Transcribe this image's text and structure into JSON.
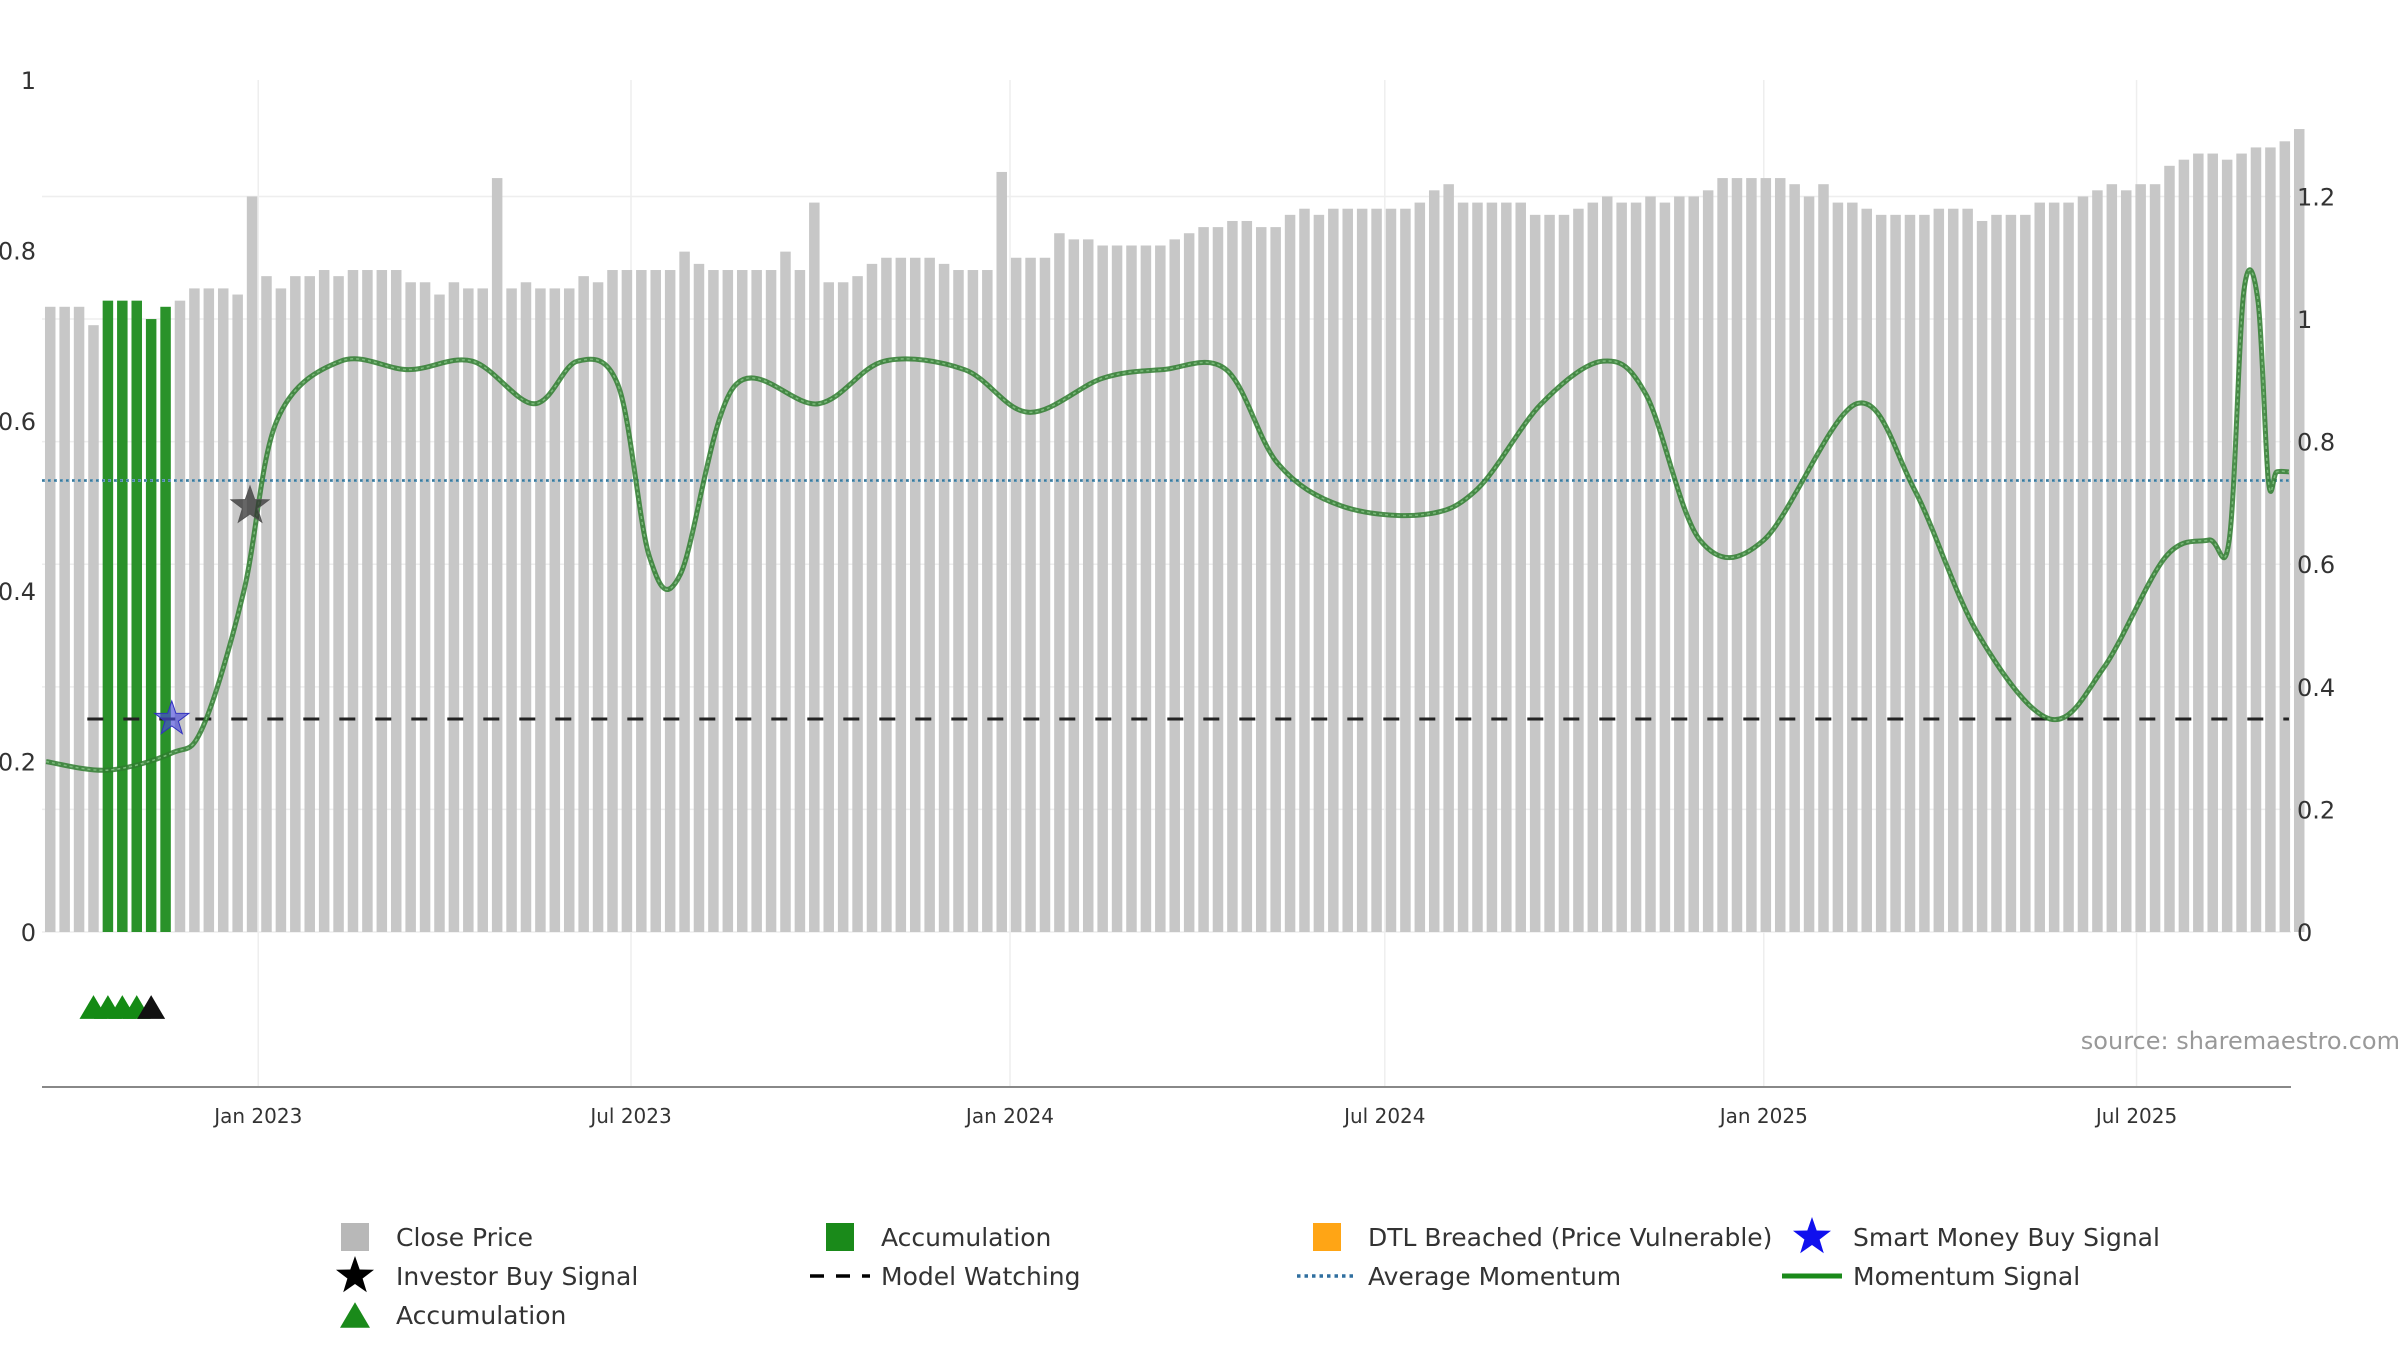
{
  "chart_data": {
    "type": "bar+line",
    "source_note": "source: sharemaestro.com",
    "y_left": {
      "range": [
        0,
        1
      ],
      "ticks": [
        0,
        0.2,
        0.4,
        0.6,
        0.8,
        1
      ],
      "tick_labels": [
        "0",
        "0.2",
        "0.4",
        "0.6",
        "0.8",
        "1"
      ]
    },
    "y_right": {
      "range": [
        0,
        1.39
      ],
      "ticks": [
        0,
        0.2,
        0.4,
        0.6,
        0.8,
        1,
        1.2
      ],
      "tick_labels": [
        "0",
        "0.2",
        "0.4",
        "0.6",
        "0.8",
        "1",
        "1.2"
      ]
    },
    "x_axis": {
      "range": [
        "2022-09-18",
        "2025-09-14"
      ],
      "ticks": [
        "2023-01-01",
        "2023-07-01",
        "2024-01-01",
        "2024-07-01",
        "2025-01-01",
        "2025-07-01"
      ],
      "tick_labels": [
        "Jan 2023",
        "Jul 2023",
        "Jan 2024",
        "Jul 2024",
        "Jan 2025",
        "Jul 2025"
      ]
    },
    "bars": {
      "name": "Close Price",
      "axis": "right",
      "start_date": "2022-09-22",
      "step_days": 7,
      "accumulation_indices": [
        4,
        5,
        6,
        7,
        8
      ],
      "values": [
        1.02,
        1.02,
        1.02,
        0.99,
        1.03,
        1.03,
        1.03,
        1.0,
        1.02,
        1.03,
        1.05,
        1.05,
        1.05,
        1.04,
        1.2,
        1.07,
        1.05,
        1.07,
        1.07,
        1.08,
        1.07,
        1.08,
        1.08,
        1.08,
        1.08,
        1.06,
        1.06,
        1.04,
        1.06,
        1.05,
        1.05,
        1.23,
        1.05,
        1.06,
        1.05,
        1.05,
        1.05,
        1.07,
        1.06,
        1.08,
        1.08,
        1.08,
        1.08,
        1.08,
        1.11,
        1.09,
        1.08,
        1.08,
        1.08,
        1.08,
        1.08,
        1.11,
        1.08,
        1.19,
        1.06,
        1.06,
        1.07,
        1.09,
        1.1,
        1.1,
        1.1,
        1.1,
        1.09,
        1.08,
        1.08,
        1.08,
        1.24,
        1.1,
        1.1,
        1.1,
        1.14,
        1.13,
        1.13,
        1.12,
        1.12,
        1.12,
        1.12,
        1.12,
        1.13,
        1.14,
        1.15,
        1.15,
        1.16,
        1.16,
        1.15,
        1.15,
        1.17,
        1.18,
        1.17,
        1.18,
        1.18,
        1.18,
        1.18,
        1.18,
        1.18,
        1.19,
        1.21,
        1.22,
        1.19,
        1.19,
        1.19,
        1.19,
        1.19,
        1.17,
        1.17,
        1.17,
        1.18,
        1.19,
        1.2,
        1.19,
        1.19,
        1.2,
        1.19,
        1.2,
        1.2,
        1.21,
        1.23,
        1.23,
        1.23,
        1.23,
        1.23,
        1.22,
        1.2,
        1.22,
        1.19,
        1.19,
        1.18,
        1.17,
        1.17,
        1.17,
        1.17,
        1.18,
        1.18,
        1.18,
        1.16,
        1.17,
        1.17,
        1.17,
        1.19,
        1.19,
        1.19,
        1.2,
        1.21,
        1.22,
        1.21,
        1.22,
        1.22,
        1.25,
        1.26,
        1.27,
        1.27,
        1.26,
        1.27,
        1.28,
        1.28,
        1.29,
        1.31
      ]
    },
    "momentum_signal": {
      "name": "Momentum Signal",
      "axis": "left",
      "points": [
        [
          "2022-09-20",
          0.2
        ],
        [
          "2022-10-20",
          0.19
        ],
        [
          "2022-11-20",
          0.21
        ],
        [
          "2022-12-05",
          0.24
        ],
        [
          "2022-12-25",
          0.4
        ],
        [
          "2023-01-10",
          0.6
        ],
        [
          "2023-02-10",
          0.67
        ],
        [
          "2023-03-15",
          0.66
        ],
        [
          "2023-04-15",
          0.67
        ],
        [
          "2023-05-15",
          0.62
        ],
        [
          "2023-06-05",
          0.67
        ],
        [
          "2023-06-25",
          0.64
        ],
        [
          "2023-07-10",
          0.44
        ],
        [
          "2023-07-25",
          0.42
        ],
        [
          "2023-08-20",
          0.64
        ],
        [
          "2023-09-30",
          0.62
        ],
        [
          "2023-11-01",
          0.67
        ],
        [
          "2023-12-10",
          0.66
        ],
        [
          "2024-01-10",
          0.61
        ],
        [
          "2024-02-15",
          0.65
        ],
        [
          "2024-03-15",
          0.66
        ],
        [
          "2024-04-15",
          0.66
        ],
        [
          "2024-05-10",
          0.55
        ],
        [
          "2024-06-10",
          0.5
        ],
        [
          "2024-07-20",
          0.49
        ],
        [
          "2024-08-15",
          0.52
        ],
        [
          "2024-09-15",
          0.62
        ],
        [
          "2024-10-15",
          0.67
        ],
        [
          "2024-11-05",
          0.63
        ],
        [
          "2024-12-01",
          0.46
        ],
        [
          "2025-01-01",
          0.46
        ],
        [
          "2025-02-15",
          0.62
        ],
        [
          "2025-03-15",
          0.52
        ],
        [
          "2025-04-15",
          0.35
        ],
        [
          "2025-05-20",
          0.25
        ],
        [
          "2025-06-15",
          0.31
        ],
        [
          "2025-07-15",
          0.44
        ],
        [
          "2025-08-05",
          0.46
        ],
        [
          "2025-08-15",
          0.46
        ],
        [
          "2025-08-22",
          0.75
        ],
        [
          "2025-08-29",
          0.74
        ],
        [
          "2025-09-03",
          0.53
        ],
        [
          "2025-09-07",
          0.54
        ],
        [
          "2025-09-13",
          0.54
        ]
      ]
    },
    "average_momentum": {
      "name": "Average Momentum",
      "axis": "left",
      "value": 0.53
    },
    "model_watching": {
      "name": "Model Watching",
      "axis": "left",
      "value": 0.25,
      "start": "2022-10-10",
      "end": "2025-09-13"
    },
    "investor_buy_signal": {
      "name": "Investor Buy Signal",
      "date": "2022-12-28",
      "value": 0.5
    },
    "smart_money_buy_signal": {
      "name": "Smart Money Buy Signal",
      "date": "2022-11-20",
      "value": 0.25
    },
    "accumulation_markers": {
      "name": "Accumulation",
      "green_dates": [
        "2022-10-13",
        "2022-10-20",
        "2022-10-27",
        "2022-11-03"
      ],
      "black_dates": [
        "2022-11-10"
      ]
    },
    "legend": {
      "items": [
        {
          "label": "Close Price",
          "symbol": "square",
          "color": "#b8b8b8"
        },
        {
          "label": "Accumulation",
          "symbol": "square",
          "color": "#1a8a1a"
        },
        {
          "label": "DTL Breached (Price Vulnerable)",
          "symbol": "square",
          "color": "#ffa515"
        },
        {
          "label": "Smart Money Buy Signal",
          "symbol": "star",
          "color": "#1010ee"
        },
        {
          "label": "Investor Buy Signal",
          "symbol": "star",
          "color": "#000000"
        },
        {
          "label": "Model Watching",
          "symbol": "dash",
          "color": "#000000"
        },
        {
          "label": "Average Momentum",
          "symbol": "dot",
          "color": "#2f6f9f"
        },
        {
          "label": "Momentum Signal",
          "symbol": "line",
          "color": "#1a8a1a"
        },
        {
          "label": "Accumulation",
          "symbol": "triangle",
          "color": "#1a8a1a"
        }
      ]
    }
  }
}
